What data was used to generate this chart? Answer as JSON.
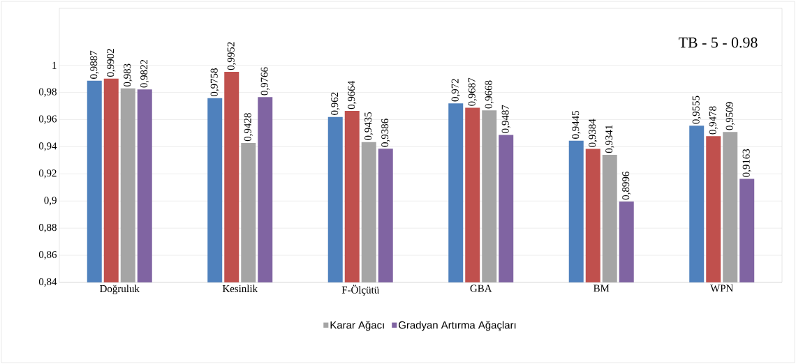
{
  "chart_data": {
    "type": "bar",
    "title": "TB - 5 - 0.98",
    "categories": [
      "Doğruluk",
      "Kesinlik",
      "F-Ölçütü",
      "GBA",
      "BM",
      "WPN"
    ],
    "series": [
      {
        "color": "#4f81bd",
        "values": [
          0.9887,
          0.9758,
          0.962,
          0.972,
          0.9445,
          0.9555
        ],
        "value_labels": [
          "0,9887",
          "0,9758",
          "0,962",
          "0,972",
          "0,9445",
          "0,9555"
        ]
      },
      {
        "color": "#c0504d",
        "values": [
          0.9902,
          0.9952,
          0.9664,
          0.9687,
          0.9384,
          0.9478
        ],
        "value_labels": [
          "0,9902",
          "0,9952",
          "0,9664",
          "0,9687",
          "0,9384",
          "0,9478"
        ]
      },
      {
        "name": "Karar Ağacı",
        "color": "#a5a5a5",
        "values": [
          0.983,
          0.9428,
          0.9435,
          0.9668,
          0.9341,
          0.9509
        ],
        "value_labels": [
          "0,983",
          "0,9428",
          "0,9435",
          "0,9668",
          "0,9341",
          "0,9509"
        ]
      },
      {
        "name": "Gradyan Artırma Ağaçları",
        "color": "#8064a2",
        "values": [
          0.9822,
          0.9766,
          0.9386,
          0.9487,
          0.8996,
          0.9163
        ],
        "value_labels": [
          "0,9822",
          "0,9766",
          "0,9386",
          "0,9487",
          "0,8996",
          "0,9163"
        ]
      }
    ],
    "ylim": [
      0.84,
      1.042
    ],
    "yticks": [
      {
        "value": 0.84,
        "label": "0,84"
      },
      {
        "value": 0.86,
        "label": "0,86"
      },
      {
        "value": 0.88,
        "label": "0,88"
      },
      {
        "value": 0.9,
        "label": "0,9"
      },
      {
        "value": 0.92,
        "label": "0,92"
      },
      {
        "value": 0.94,
        "label": "0,94"
      },
      {
        "value": 0.96,
        "label": "0,96"
      },
      {
        "value": 0.98,
        "label": "0,98"
      },
      {
        "value": 1,
        "label": "1"
      }
    ],
    "grid": "y",
    "legend": "bottom"
  }
}
